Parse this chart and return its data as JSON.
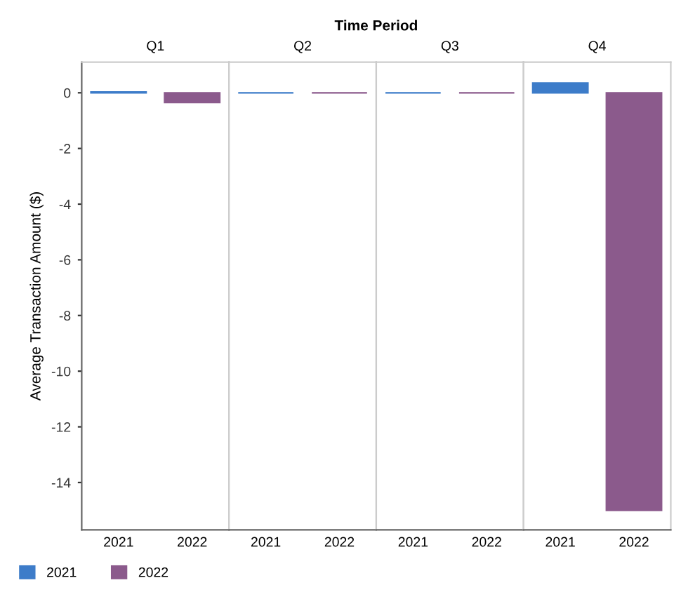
{
  "chart_data": [
    {
      "type": "bar",
      "title": "Q1",
      "categories": [
        "2021",
        "2022"
      ],
      "ylabel": "Average Transaction Amount ($)",
      "annotations": [
        "Time Period"
      ],
      "ylim": [
        -15.7,
        1.1
      ],
      "yticks": [
        0,
        -2,
        -4,
        -6,
        -8,
        -10,
        -12,
        -14
      ],
      "legend": "bottom",
      "series": [
        {
          "name": "2021",
          "color": "#3d7cc9",
          "values": [
            0.03,
            null
          ]
        },
        {
          "name": "2022",
          "color": "#8b5a8c",
          "values": [
            null,
            -0.35
          ]
        }
      ]
    },
    {
      "type": "bar",
      "title": "Q2",
      "categories": [
        "2021",
        "2022"
      ],
      "ylim": [
        -15.7,
        1.1
      ],
      "tick_labels": "x",
      "series": [
        {
          "color": "#3d7cc9",
          "values": [
            0.0,
            null
          ]
        },
        {
          "color": "#8b5a8c",
          "values": [
            null,
            0.0
          ]
        }
      ]
    },
    {
      "type": "bar",
      "title": "Q3",
      "categories": [
        "2021",
        "2022"
      ],
      "ylim": [
        -15.7,
        1.1
      ],
      "tick_labels": "x",
      "series": [
        {
          "color": "#3d7cc9",
          "values": [
            0.0,
            null
          ]
        },
        {
          "color": "#8b5a8c",
          "values": [
            null,
            0.0
          ]
        }
      ]
    },
    {
      "type": "bar",
      "title": "Q4",
      "categories": [
        "2021",
        "2022"
      ],
      "ylim": [
        -15.7,
        1.1
      ],
      "tick_labels": "x",
      "series": [
        {
          "color": "#3d7cc9",
          "values": [
            0.35,
            null
          ]
        },
        {
          "color": "#8b5a8c",
          "values": [
            null,
            -15.0
          ]
        }
      ]
    }
  ]
}
